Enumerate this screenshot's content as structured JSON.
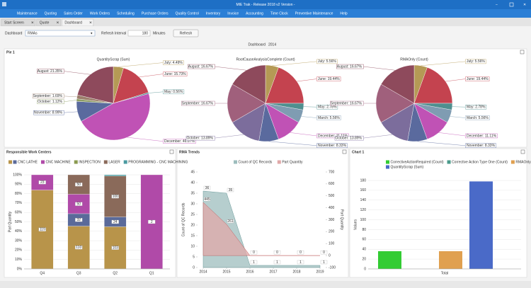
{
  "title_bar": {
    "title": "MIE Trak - Release 2018 v2 Version -"
  },
  "menu": [
    "Maintenance",
    "Quoting",
    "Sales Order",
    "Work Orders",
    "Scheduling",
    "Purchase Orders",
    "Quality Control",
    "Inventory",
    "Invoice",
    "Accounting",
    "Time Clock",
    "Preventive Maintenance",
    "Help"
  ],
  "tabs": [
    "Start Screen",
    "Quote",
    "Dashboard"
  ],
  "toolbar": {
    "dashboard_label": "Dashboard",
    "dashboard_value": "RMAs",
    "interval_label": "Refresh Interval",
    "interval_value": "180",
    "interval_unit": "Minutes",
    "refresh_button": "Refresh"
  },
  "header": {
    "title": "Dashboard",
    "year": "2014"
  },
  "panels": [
    "Pie 1",
    "Responsible Work Centers",
    "RMA Trends",
    "Chart 1"
  ],
  "chart_data": [
    {
      "type": "pie",
      "title": "QuantityScrap (Sum)",
      "values": [
        4.49,
        15.73,
        0.56,
        46.07,
        8.99,
        1.12,
        1.69,
        21.35
      ],
      "value_labels": [
        "July: 4.49%",
        "June: 15.73%",
        "May: 0.56%",
        "December: 46.07%",
        "November: 8.99%",
        "October: 1.12%",
        "September: 1.69%",
        "August: 21.35%"
      ],
      "colors": [
        "#b59a55",
        "#c4434f",
        "#4f8f8f",
        "#c052b5",
        "#5a6a9e",
        "#8c9c62",
        "#9c7f6c",
        "#8e4a5c"
      ]
    },
    {
      "type": "pie",
      "title": "RootCauseAnalysisComplete (Count)",
      "values": [
        5.56,
        19.44,
        2.78,
        5.56,
        11.11,
        8.33,
        13.89,
        16.67,
        16.67
      ],
      "value_labels": [
        "July: 5.56%",
        "June: 19.44%",
        "May: 2.78%",
        "March: 5.56%",
        "December: 11.11%",
        "November: 8.33%",
        "October: 13.89%",
        "September: 16.67%",
        "August: 16.67%"
      ],
      "colors": [
        "#b59a55",
        "#c4434f",
        "#4f8f8f",
        "#7f9cb2",
        "#c052b5",
        "#5a6a9e",
        "#7c6d9c",
        "#a0607c",
        "#8e4a5c"
      ]
    },
    {
      "type": "pie",
      "title": "RMAOnly (Count)",
      "values": [
        5.56,
        19.44,
        2.78,
        5.56,
        11.11,
        8.33,
        13.89,
        16.67,
        16.67
      ],
      "value_labels": [
        "July: 5.56%",
        "June: 19.44%",
        "May: 2.78%",
        "March: 5.56%",
        "December: 11.11%",
        "November: 8.33%",
        "October: 13.89%",
        "September: 16.67%",
        "August: 16.67%"
      ],
      "colors": [
        "#b59a55",
        "#c4434f",
        "#4f8f8f",
        "#7f9cb2",
        "#c052b5",
        "#5a6a9e",
        "#7c6d9c",
        "#a0607c",
        "#8e4a5c"
      ]
    },
    {
      "type": "bar",
      "stacking": "percent",
      "y_label": "Part Quantity",
      "categories": [
        "Q4",
        "Q3",
        "Q2",
        "Q1"
      ],
      "series": [
        {
          "name": null,
          "color": "#b8944a",
          "values": [
            119,
            110,
            103,
            null
          ]
        },
        {
          "name": "CNC LATHE",
          "color": "#5a6a9a",
          "values": [
            null,
            32,
            24,
            null
          ]
        },
        {
          "name": "CNC MACHINE",
          "color": "#b04aa8",
          "values": [
            23,
            50,
            null,
            2
          ]
        },
        {
          "name": "INSPECTION",
          "color": "#8a9a50",
          "values": [
            null,
            null,
            null,
            null
          ]
        },
        {
          "name": "LASER",
          "color": "#8a6a5a",
          "values": [
            null,
            50,
            100,
            null
          ]
        },
        {
          "name": "PROGRAMMING - CNC MACHINING",
          "color": "#4a9aa0",
          "values": [
            null,
            null,
            3,
            null
          ]
        }
      ],
      "ylim": [
        0,
        100
      ],
      "yticks": [
        {
          "value": 0,
          "label": "0%"
        },
        {
          "value": 10,
          "label": "10%"
        },
        {
          "value": 20,
          "label": "20%"
        },
        {
          "value": 30,
          "label": "30%"
        },
        {
          "value": 40,
          "label": "40%"
        },
        {
          "value": 50,
          "label": "50%"
        },
        {
          "value": 60,
          "label": "60%"
        },
        {
          "value": 70,
          "label": "70%"
        },
        {
          "value": 80,
          "label": "80%"
        },
        {
          "value": 90,
          "label": "90%"
        },
        {
          "value": 100,
          "label": "100%"
        }
      ],
      "grid": true
    },
    {
      "type": "area",
      "y_label": "Count of QC Records",
      "y2_label": "Part Quantity",
      "x": [
        2014,
        2015,
        2016,
        2017,
        2018,
        2019
      ],
      "series": [
        {
          "name": "Count of QC Records",
          "color": "#9dbdbd",
          "values": [
            36,
            35,
            1,
            1,
            1,
            1
          ]
        },
        {
          "name": "Part Quantity",
          "color": "#e0a8a8",
          "axis": "y2",
          "values": [
            445,
            261,
            0,
            0,
            0,
            0
          ]
        }
      ],
      "xlim": [
        2014,
        2019
      ],
      "xticks": [
        2014,
        2015,
        2016,
        2017,
        2018,
        2019
      ],
      "ylim": [
        0,
        45
      ],
      "yticks": [
        0,
        5,
        10,
        15,
        20,
        25,
        30,
        35,
        40,
        45
      ],
      "y2lim": [
        -100,
        700
      ],
      "y2ticks": [
        -100,
        0,
        100,
        200,
        300,
        400,
        500,
        600,
        700
      ]
    },
    {
      "type": "bar",
      "y_label": "Values",
      "categories": [
        "Total"
      ],
      "series": [
        {
          "name": "CorrectiveActionRequired (Count)",
          "color": "#33cc33",
          "values": [
            36
          ]
        },
        {
          "name": "Corrective Action Type One (Count)",
          "color": "#4a9a8a",
          "values": [
            0
          ]
        },
        {
          "name": "RMAOnly (Count)",
          "color": "#e0a050",
          "values": [
            36
          ]
        },
        {
          "name": "QuantityScrap (Sum)",
          "color": "#4a6ac8",
          "values": [
            178
          ]
        }
      ],
      "ylim": [
        0,
        180
      ],
      "yticks": [
        0,
        20,
        40,
        60,
        80,
        100,
        120,
        140,
        160,
        180
      ],
      "grid": true
    }
  ]
}
